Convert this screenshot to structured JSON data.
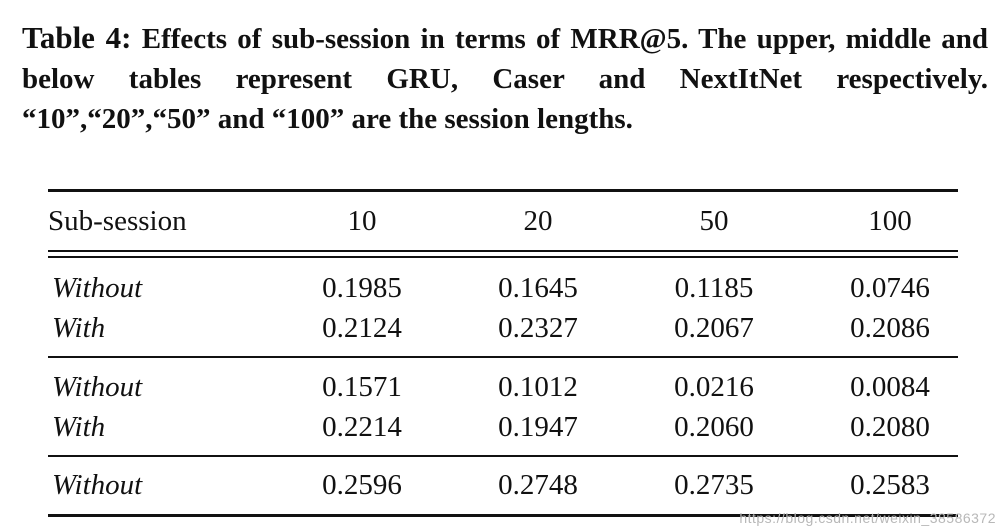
{
  "caption": {
    "label": "Table 4:",
    "text": "Effects of sub-session in terms of MRR@5. The upper, middle and below tables represent GRU, Caser and NextItNet respectively. “10”,“20”,“50” and “100” are the session lengths."
  },
  "table": {
    "headers": [
      "Sub-session",
      "10",
      "20",
      "50",
      "100"
    ],
    "rows": [
      {
        "label": "Without",
        "values": [
          "0.1985",
          "0.1645",
          "0.1185",
          "0.0746"
        ]
      },
      {
        "label": "With",
        "values": [
          "0.2124",
          "0.2327",
          "0.2067",
          "0.2086"
        ]
      },
      {
        "label": "Without",
        "values": [
          "0.1571",
          "0.1012",
          "0.0216",
          "0.0084"
        ]
      },
      {
        "label": "With",
        "values": [
          "0.2214",
          "0.1947",
          "0.2060",
          "0.2080"
        ]
      },
      {
        "label": "Without",
        "values": [
          "0.2596",
          "0.2748",
          "0.2735",
          "0.2583"
        ]
      }
    ]
  },
  "watermark": "https://blog.csdn.net/weixin_38586372"
}
